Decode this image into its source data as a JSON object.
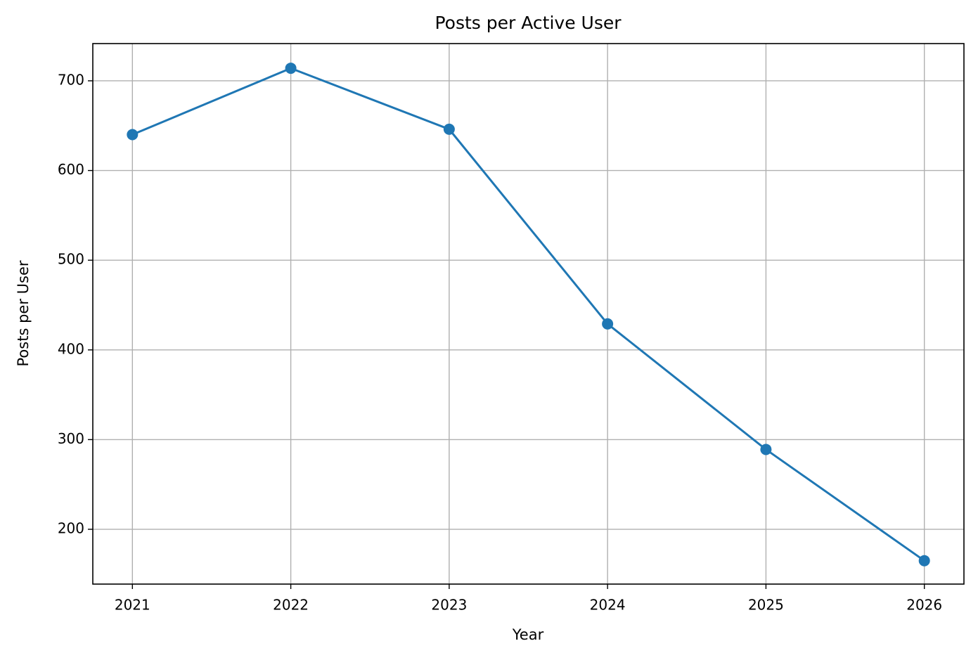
{
  "chart_data": {
    "type": "line",
    "title": "Posts per Active User",
    "x_label": "Year",
    "y_label": "Posts per User",
    "x": [
      2021,
      2022,
      2023,
      2024,
      2025,
      2026
    ],
    "series": [
      {
        "color": "#1f77b4",
        "values": [
          640,
          714,
          646,
          429,
          289,
          165
        ]
      }
    ],
    "xlim": [
      2020.75,
      2026.25
    ],
    "xticks": [
      2021,
      2022,
      2023,
      2024,
      2025,
      2026
    ],
    "ylim": [
      138.9,
      741.5
    ],
    "yticks": [
      200,
      300,
      400,
      500,
      600,
      700
    ],
    "grid": true,
    "markers": true
  }
}
